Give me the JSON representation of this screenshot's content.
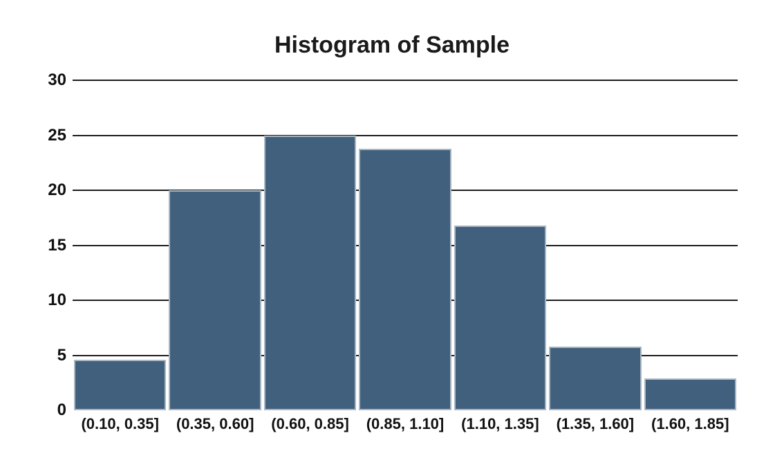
{
  "title": "Histogram of Sample",
  "chart_data": {
    "type": "bar",
    "title": "Histogram of Sample",
    "categories": [
      "(0.10, 0.35]",
      "(0.35, 0.60]",
      "(0.60, 0.85]",
      "(0.85, 1.10]",
      "(1.10, 1.35]",
      "(1.35, 1.60]",
      "(1.60, 1.85]"
    ],
    "values": [
      4.6,
      20,
      25,
      23.8,
      16.8,
      5.8,
      2.9
    ],
    "xlabel": "",
    "ylabel": "",
    "ylim": [
      0,
      30
    ],
    "yticks": [
      0,
      5,
      10,
      15,
      20,
      25,
      30
    ],
    "grid": "horizontal gridlines at each y tick, drawn behind bars, no line at 0",
    "legend_position": "none",
    "colors": {
      "bar_fill": "#41607D",
      "bar_border": "#A9B7C2",
      "gridline": "#1C1C1C",
      "text": "#111111",
      "background": "#FFFFFF"
    }
  }
}
